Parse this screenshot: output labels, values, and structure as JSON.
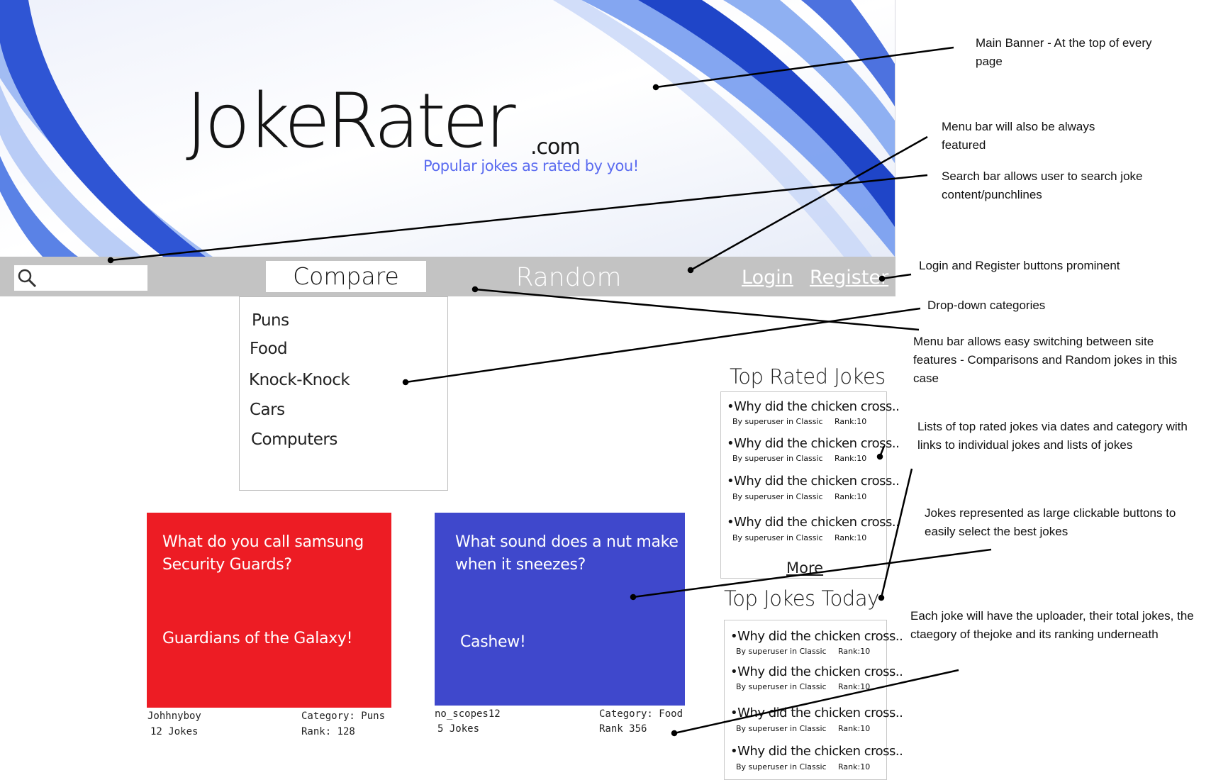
{
  "banner": {
    "logo": "JokeRater",
    "logo_suffix": ".com",
    "tagline": "Popular jokes as rated by you!"
  },
  "menu": {
    "search_placeholder": "",
    "compare": "Compare",
    "random": "Random",
    "login": "Login",
    "register": "Register"
  },
  "dropdown": {
    "items": [
      "Puns",
      "Food",
      "Knock-Knock",
      "Cars",
      "Computers"
    ]
  },
  "cards": [
    {
      "question": "What do you call samsung Security Guards?",
      "answer": "Guardians of the Galaxy!",
      "color": "#ed1c24",
      "user": "Johhnyboy",
      "jokes": "12 Jokes",
      "category": "Category: Puns",
      "rank": "Rank: 128"
    },
    {
      "question": "What sound does a nut make when it sneezes?",
      "answer": "Cashew!",
      "color": "#3f48cc",
      "user": "no_scopes12",
      "jokes": "5 Jokes",
      "category": "Category: Food",
      "rank": "Rank 356"
    }
  ],
  "top_rated": {
    "title": "Top Rated Jokes",
    "entries": [
      {
        "title": "•Why did the chicken cross..",
        "by": "By superuser in Classic",
        "rank": "Rank:10"
      },
      {
        "title": "•Why did the chicken cross..",
        "by": "By superuser in Classic",
        "rank": "Rank:10"
      },
      {
        "title": "•Why did the chicken cross..",
        "by": "By superuser in Classic",
        "rank": "Rank:10"
      },
      {
        "title": "•Why did the chicken cross..",
        "by": "By superuser in Classic",
        "rank": "Rank:10"
      }
    ],
    "more": "More"
  },
  "top_today": {
    "title": "Top Jokes Today",
    "entries": [
      {
        "title": "•Why did the chicken cross..",
        "by": "By superuser in Classic",
        "rank": "Rank:10"
      },
      {
        "title": "•Why did the chicken cross..",
        "by": "By superuser in Classic",
        "rank": "Rank:10"
      },
      {
        "title": "•Why did the chicken cross..",
        "by": "By superuser in Classic",
        "rank": "Rank:10"
      },
      {
        "title": "•Why did the chicken cross..",
        "by": "By superuser in Classic",
        "rank": "Rank:10"
      }
    ]
  },
  "annotations": {
    "main_banner": "Main Banner - At the top of every page",
    "menu_bar": "Menu bar will also be always featured",
    "search_bar": "Search bar allows user to search joke content/punchlines",
    "login_register": "Login and Register buttons prominent",
    "dropdown": "Drop-down categories",
    "switching": "Menu bar allows easy switching between site features - Comparisons and Random jokes in this case",
    "lists": "Lists of top rated jokes via dates and category with links to individual jokes and lists of jokes",
    "buttons": "Jokes represented as large clickable buttons to easily select the best jokes",
    "uploader": "Each joke will have the uploader, their total jokes, the ctaegory of thejoke and its ranking underneath"
  }
}
